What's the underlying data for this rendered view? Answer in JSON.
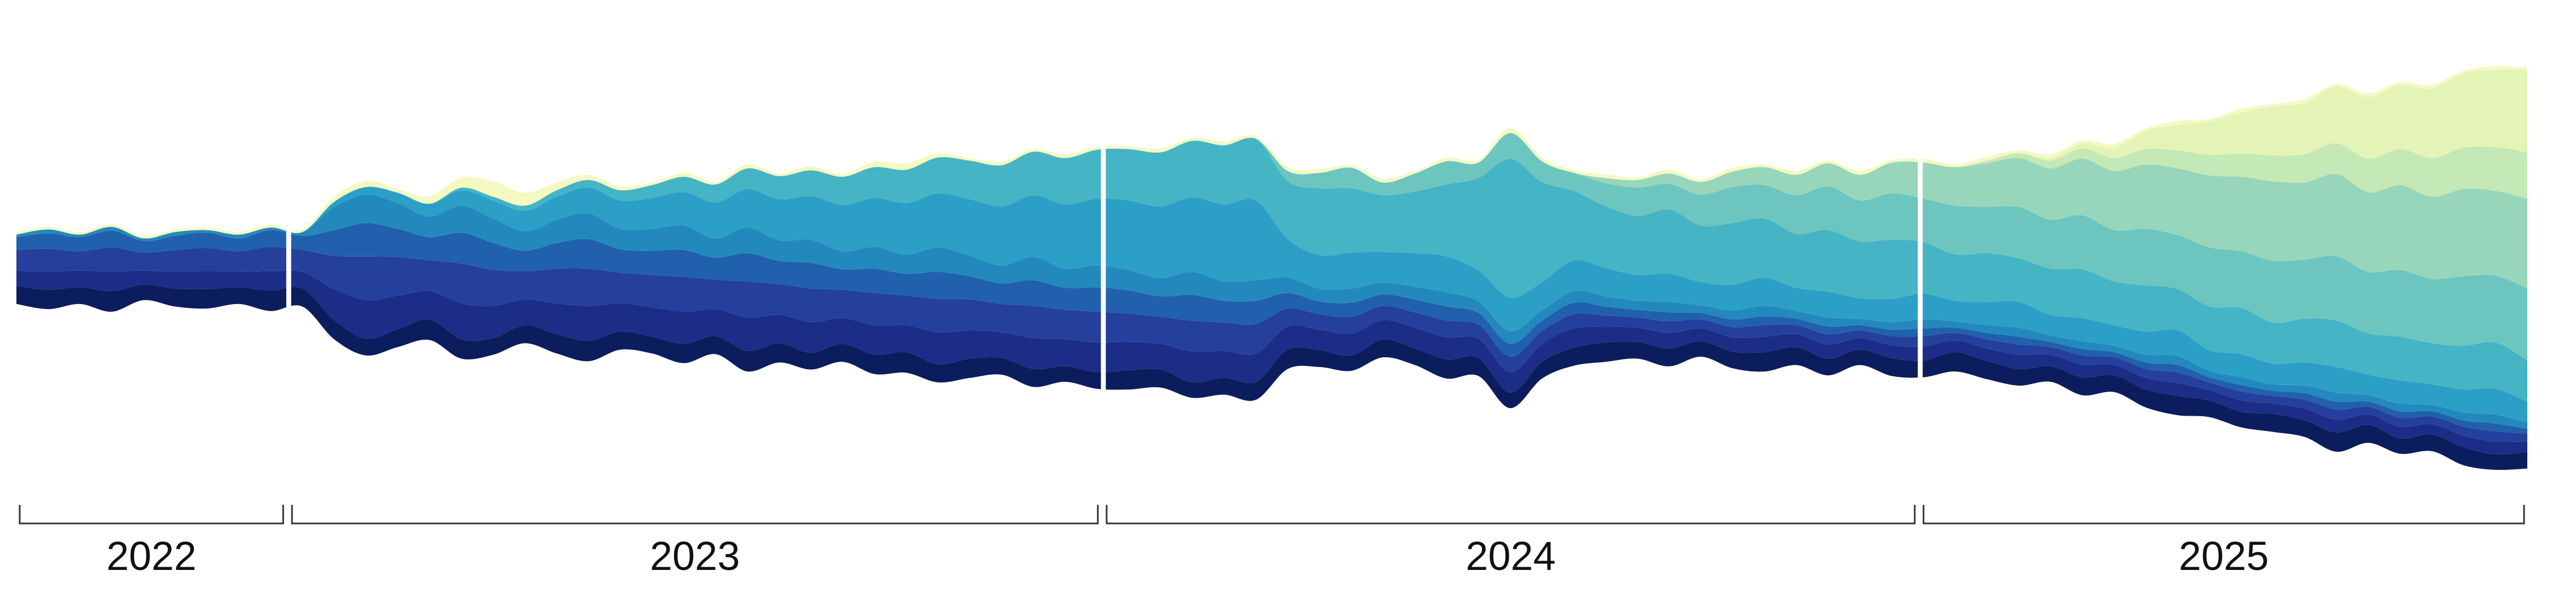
{
  "chart_data": {
    "type": "area",
    "title": "",
    "xlabel": "",
    "ylabel": "",
    "grid": false,
    "legend": "none",
    "stacking": "streamgraph (centered baseline)",
    "x_range": [
      "2022-09",
      "2025-12"
    ],
    "periods": [
      {
        "label": "2022",
        "start": "2022-09-01",
        "end": "2022-12-31"
      },
      {
        "label": "2023",
        "start": "2023-01-01",
        "end": "2023-12-31"
      },
      {
        "label": "2024",
        "start": "2024-01-01",
        "end": "2024-12-31"
      },
      {
        "label": "2025",
        "start": "2025-01-01",
        "end": "2025-09-30"
      }
    ],
    "palette": [
      "#0b1d5c",
      "#1b2d86",
      "#253f9c",
      "#2160ac",
      "#2389bd",
      "#2c9fc7",
      "#45b4c4",
      "#6cc5bf",
      "#97d6ba",
      "#c4e8b6",
      "#e3f4b6",
      "#f4f9c2"
    ],
    "series": [
      {
        "values": [
          14,
          15,
          13,
          16,
          12,
          14,
          15,
          13,
          16,
          14,
          15,
          13,
          14,
          16,
          15,
          13,
          14,
          15,
          16,
          14,
          13,
          15,
          14,
          16,
          15,
          13,
          14,
          15,
          16,
          14,
          15,
          13,
          14,
          12,
          13,
          15,
          14,
          12,
          13,
          14,
          15,
          13,
          12,
          14,
          13,
          15,
          14,
          12,
          13,
          14,
          15,
          13,
          14,
          12,
          13,
          15,
          14,
          13,
          12,
          14,
          13,
          15,
          14,
          13,
          12,
          14,
          13,
          14,
          15,
          13,
          12,
          14,
          13,
          15,
          14,
          12,
          13,
          14,
          12,
          13
        ]
      },
      {
        "values": [
          12,
          14,
          13,
          15,
          11,
          13,
          14,
          12,
          15,
          13,
          24,
          30,
          26,
          22,
          28,
          25,
          20,
          24,
          27,
          22,
          23,
          25,
          21,
          26,
          22,
          24,
          20,
          23,
          21,
          25,
          22,
          20,
          24,
          21,
          23,
          22,
          20,
          24,
          21,
          22,
          18,
          16,
          17,
          15,
          16,
          17,
          15,
          16,
          14,
          15,
          12,
          11,
          12,
          10,
          11,
          12,
          10,
          11,
          9,
          10,
          11,
          9,
          10,
          11,
          9,
          10,
          8,
          9,
          10,
          8,
          9,
          8,
          9,
          10,
          8,
          9,
          8,
          9,
          10,
          8
        ]
      },
      {
        "values": [
          16,
          18,
          15,
          19,
          14,
          17,
          18,
          16,
          19,
          17,
          26,
          34,
          30,
          24,
          31,
          28,
          22,
          27,
          29,
          24,
          25,
          27,
          23,
          28,
          24,
          26,
          22,
          25,
          23,
          26,
          24,
          22,
          25,
          23,
          24,
          22,
          21,
          24,
          22,
          23,
          14,
          12,
          13,
          11,
          12,
          13,
          11,
          12,
          10,
          11,
          9,
          8,
          9,
          7,
          8,
          9,
          7,
          8,
          6,
          7,
          8,
          6,
          7,
          8,
          6,
          7,
          6,
          7,
          8,
          6,
          7,
          6,
          7,
          8,
          6,
          7,
          6,
          7,
          8,
          6
        ]
      },
      {
        "values": [
          10,
          12,
          11,
          13,
          9,
          11,
          12,
          10,
          13,
          11,
          20,
          26,
          22,
          18,
          24,
          21,
          16,
          20,
          23,
          18,
          19,
          21,
          17,
          22,
          18,
          20,
          16,
          19,
          17,
          21,
          18,
          16,
          20,
          17,
          19,
          18,
          16,
          20,
          17,
          18,
          12,
          10,
          11,
          9,
          10,
          11,
          9,
          10,
          8,
          9,
          7,
          6,
          7,
          5,
          6,
          7,
          5,
          6,
          4,
          5,
          6,
          4,
          5,
          6,
          4,
          5,
          4,
          5,
          6,
          4,
          5,
          4,
          5,
          6,
          4,
          5,
          4,
          5,
          6,
          4
        ]
      },
      {
        "values": [
          2,
          3,
          2,
          3,
          2,
          3,
          2,
          3,
          2,
          3,
          18,
          22,
          20,
          16,
          21,
          19,
          15,
          18,
          20,
          16,
          17,
          19,
          15,
          20,
          16,
          18,
          14,
          17,
          15,
          19,
          16,
          14,
          18,
          15,
          17,
          16,
          14,
          18,
          15,
          16,
          12,
          10,
          11,
          9,
          10,
          11,
          9,
          10,
          8,
          9,
          8,
          7,
          8,
          6,
          7,
          8,
          6,
          7,
          5,
          6,
          7,
          5,
          6,
          7,
          5,
          6,
          5,
          6,
          7,
          5,
          6,
          5,
          6,
          7,
          5,
          6,
          5,
          6,
          7,
          5
        ]
      },
      {
        "values": [
          0,
          0,
          0,
          0,
          0,
          0,
          0,
          0,
          0,
          0,
          4,
          6,
          8,
          10,
          12,
          14,
          16,
          18,
          20,
          22,
          24,
          26,
          28,
          30,
          32,
          34,
          36,
          38,
          40,
          42,
          44,
          46,
          48,
          50,
          52,
          54,
          56,
          58,
          60,
          62,
          30,
          26,
          28,
          24,
          26,
          28,
          24,
          26,
          22,
          24,
          22,
          20,
          22,
          18,
          20,
          22,
          18,
          20,
          16,
          18,
          20,
          16,
          18,
          20,
          16,
          18,
          16,
          18,
          20,
          16,
          18,
          16,
          18,
          20,
          16,
          18,
          16,
          18,
          20,
          16
        ]
      },
      {
        "values": [
          0,
          0,
          0,
          0,
          0,
          0,
          0,
          0,
          0,
          0,
          0,
          0,
          0,
          0,
          2,
          3,
          4,
          5,
          6,
          8,
          10,
          12,
          14,
          16,
          18,
          20,
          22,
          24,
          26,
          28,
          30,
          32,
          34,
          36,
          38,
          40,
          42,
          44,
          46,
          48,
          45,
          52,
          50,
          44,
          48,
          56,
          72,
          108,
          78,
          54,
          48,
          46,
          50,
          44,
          48,
          46,
          42,
          48,
          44,
          46,
          40,
          36,
          38,
          34,
          36,
          38,
          34,
          36,
          32,
          34,
          36,
          32,
          34,
          36,
          32,
          34,
          32,
          34,
          36,
          32
        ]
      },
      {
        "values": [
          0,
          0,
          0,
          0,
          0,
          0,
          0,
          0,
          0,
          0,
          0,
          0,
          0,
          0,
          0,
          0,
          0,
          0,
          0,
          0,
          0,
          0,
          0,
          0,
          0,
          0,
          0,
          0,
          0,
          0,
          0,
          0,
          0,
          0,
          0,
          0,
          0,
          0,
          0,
          0,
          8,
          12,
          16,
          10,
          14,
          18,
          12,
          20,
          16,
          14,
          18,
          22,
          20,
          24,
          28,
          26,
          30,
          34,
          32,
          36,
          34,
          38,
          36,
          40,
          38,
          42,
          40,
          44,
          42,
          46,
          44,
          48,
          46,
          50,
          48,
          52,
          50,
          54,
          52,
          56
        ]
      },
      {
        "values": [
          0,
          0,
          0,
          0,
          0,
          0,
          0,
          0,
          0,
          0,
          0,
          0,
          0,
          0,
          0,
          0,
          0,
          0,
          0,
          0,
          0,
          0,
          0,
          0,
          0,
          0,
          0,
          0,
          0,
          0,
          0,
          0,
          0,
          0,
          0,
          0,
          0,
          0,
          0,
          0,
          0,
          0,
          0,
          0,
          0,
          0,
          0,
          0,
          0,
          0,
          4,
          6,
          8,
          10,
          12,
          14,
          16,
          18,
          20,
          24,
          28,
          30,
          34,
          38,
          40,
          44,
          46,
          50,
          52,
          56,
          58,
          62,
          60,
          64,
          62,
          66,
          64,
          68,
          66,
          70
        ]
      },
      {
        "values": [
          0,
          0,
          0,
          0,
          0,
          0,
          0,
          0,
          0,
          0,
          0,
          0,
          0,
          0,
          0,
          0,
          0,
          0,
          0,
          0,
          0,
          0,
          0,
          0,
          0,
          0,
          0,
          0,
          0,
          0,
          0,
          0,
          0,
          0,
          0,
          0,
          0,
          0,
          0,
          0,
          0,
          0,
          0,
          0,
          0,
          0,
          0,
          0,
          0,
          0,
          0,
          0,
          0,
          0,
          0,
          0,
          0,
          0,
          0,
          0,
          0,
          0,
          2,
          4,
          6,
          8,
          10,
          12,
          14,
          16,
          18,
          20,
          22,
          24,
          26,
          28,
          30,
          32,
          34,
          36
        ]
      },
      {
        "values": [
          0,
          0,
          0,
          0,
          0,
          0,
          0,
          0,
          0,
          0,
          0,
          0,
          0,
          0,
          0,
          0,
          0,
          0,
          0,
          0,
          0,
          0,
          0,
          0,
          0,
          0,
          0,
          0,
          0,
          0,
          0,
          0,
          0,
          0,
          0,
          0,
          0,
          0,
          0,
          0,
          0,
          0,
          0,
          0,
          0,
          0,
          0,
          0,
          0,
          0,
          0,
          0,
          0,
          0,
          0,
          0,
          0,
          0,
          0,
          0,
          0,
          0,
          0,
          0,
          2,
          4,
          8,
          14,
          20,
          26,
          32,
          38,
          40,
          44,
          48,
          50,
          54,
          58,
          60,
          64
        ]
      },
      {
        "values": [
          2,
          2,
          2,
          2,
          2,
          2,
          2,
          2,
          2,
          2,
          4,
          5,
          3,
          6,
          8,
          12,
          10,
          6,
          4,
          3,
          2,
          3,
          2,
          3,
          2,
          3,
          2,
          4,
          5,
          3,
          2,
          3,
          2,
          3,
          2,
          2,
          3,
          2,
          3,
          2,
          3,
          3,
          2,
          3,
          2,
          3,
          2,
          4,
          3,
          2,
          3,
          2,
          3,
          2,
          3,
          2,
          3,
          2,
          3,
          2,
          3,
          2,
          3,
          2,
          3,
          2,
          3,
          2,
          3,
          2,
          3,
          2,
          3,
          2,
          3,
          2,
          3,
          2,
          3,
          2
        ]
      }
    ]
  }
}
